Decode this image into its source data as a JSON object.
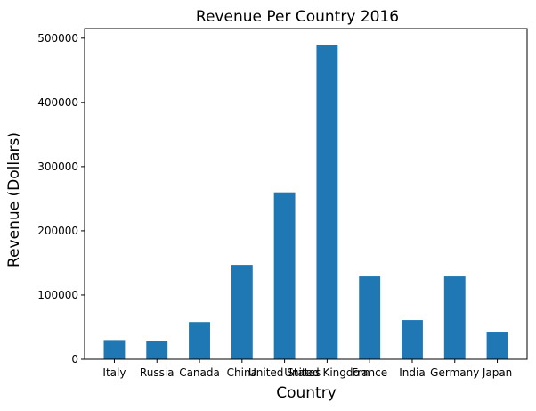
{
  "chart_data": {
    "type": "bar",
    "title": "Revenue Per Country 2016",
    "xlabel": "Country",
    "ylabel": "Revenue (Dollars)",
    "categories": [
      "Italy",
      "Russia",
      "Canada",
      "China",
      "United States",
      "United Kingdom",
      "France",
      "India",
      "Germany",
      "Japan"
    ],
    "values": [
      30000,
      29000,
      58000,
      147000,
      260000,
      490000,
      129000,
      61000,
      129000,
      43000
    ],
    "ylim": [
      0,
      515000
    ],
    "yticks": [
      0,
      100000,
      200000,
      300000,
      400000,
      500000
    ],
    "grid": false,
    "legend": "none",
    "bar_color": "#1f77b4"
  }
}
